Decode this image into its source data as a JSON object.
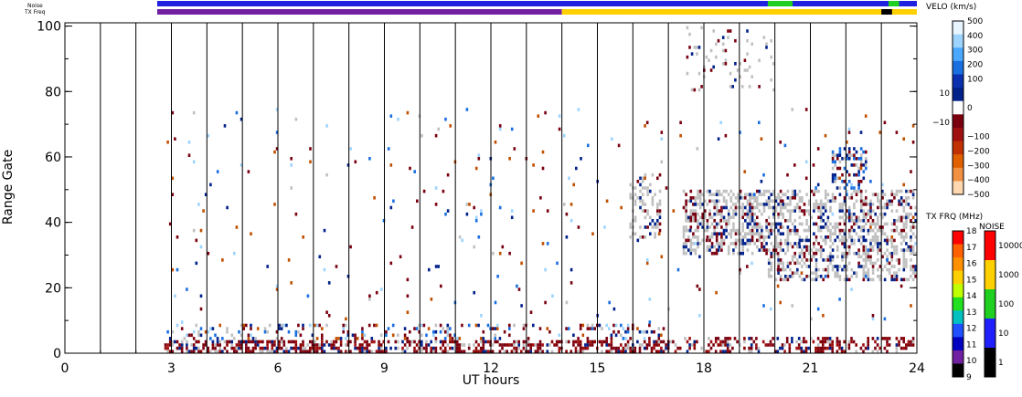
{
  "chart_data": {
    "type": "heatmap",
    "title": "",
    "xlabel": "UT hours",
    "ylabel": "Range Gate",
    "xlim": [
      0,
      24
    ],
    "ylim": [
      0,
      101
    ],
    "x_ticks": [
      "0",
      "3",
      "6",
      "9",
      "12",
      "15",
      "18",
      "21",
      "24"
    ],
    "x_tick_values": [
      0,
      3,
      6,
      9,
      12,
      15,
      18,
      21,
      24
    ],
    "y_ticks": [
      "0",
      "20",
      "40",
      "60",
      "80",
      "100"
    ],
    "y_tick_values": [
      0,
      20,
      40,
      60,
      80,
      100
    ],
    "vertical_lines_hours": [
      1,
      2,
      3,
      4,
      5,
      6,
      7,
      8,
      9,
      10,
      11,
      12,
      13,
      14,
      15,
      16,
      17,
      18,
      19,
      20,
      21,
      22,
      23
    ],
    "top_bars": {
      "noise_label": "Noise",
      "txfreq_label": "TX Freq",
      "noise_segments": [
        {
          "from": 2.6,
          "to": 24,
          "color": "#2020e0"
        },
        {
          "from": 19.8,
          "to": 20.5,
          "color": "#20d020"
        },
        {
          "from": 23.2,
          "to": 23.5,
          "color": "#20d020"
        }
      ],
      "txfreq_segments": [
        {
          "from": 2.6,
          "to": 14.0,
          "color": "#7020a0"
        },
        {
          "from": 14.0,
          "to": 24,
          "color": "#ffd000"
        },
        {
          "from": 23.0,
          "to": 23.3,
          "color": "#000000"
        }
      ]
    },
    "series": [
      {
        "name": "velocity scatter",
        "description_source": "visible colored pixels"
      },
      {
        "name": "ground scatter",
        "color": "#c0c0c0"
      }
    ],
    "clusters": [
      {
        "x0": 2.8,
        "x1": 16.9,
        "y0": 0,
        "y1": 4,
        "density": 0.55,
        "dominant": "darkred"
      },
      {
        "x0": 2.8,
        "x1": 16.9,
        "y0": 4,
        "y1": 9,
        "density": 0.2,
        "dominant": "mixed"
      },
      {
        "x0": 16.9,
        "x1": 24,
        "y0": 0,
        "y1": 5,
        "density": 0.35,
        "dominant": "darkred"
      },
      {
        "x0": 15.9,
        "x1": 16.8,
        "y0": 35,
        "y1": 55,
        "density": 0.3,
        "dominant": "gray"
      },
      {
        "x0": 17.4,
        "x1": 19.8,
        "y0": 30,
        "y1": 50,
        "density": 0.55,
        "dominant": "gray"
      },
      {
        "x0": 19.8,
        "x1": 24,
        "y0": 22,
        "y1": 50,
        "density": 0.45,
        "dominant": "gray"
      },
      {
        "x0": 21.6,
        "x1": 22.6,
        "y0": 50,
        "y1": 63,
        "density": 0.35,
        "dominant": "navy"
      },
      {
        "x0": 17.5,
        "x1": 20.0,
        "y0": 80,
        "y1": 100,
        "density": 0.08,
        "dominant": "gray"
      },
      {
        "x0": 2.8,
        "x1": 24,
        "y0": 9,
        "y1": 75,
        "density": 0.015,
        "dominant": "mixed"
      }
    ],
    "velocity_colorbar": {
      "title": "VELO (km/s)",
      "labels": [
        "500",
        "400",
        "300",
        "200",
        "100",
        "10",
        "0",
        "−10",
        "−100",
        "−200",
        "−300",
        "−400",
        "−500"
      ],
      "colors": [
        "#e8f4ff",
        "#9cd4ff",
        "#4aa8ff",
        "#1a6fe0",
        "#0a30b0",
        "#00208a",
        "#ffffff",
        "#7a0010",
        "#a01010",
        "#c03000",
        "#e06000",
        "#f09040",
        "#ffd8b0"
      ]
    },
    "txfreq_colorbar": {
      "title": "TX FRQ (MHz)",
      "labels": [
        "18",
        "17",
        "16",
        "15",
        "14",
        "13",
        "12",
        "11",
        "10",
        "9"
      ],
      "colors": [
        "#ff0000",
        "#ff6000",
        "#ff9000",
        "#ffd000",
        "#c0ff00",
        "#20e020",
        "#00c0c0",
        "#2050ff",
        "#0000c0",
        "#7020a0",
        "#000000"
      ]
    },
    "noise_colorbar": {
      "title": "NOISE",
      "labels": [
        "10000",
        "1000",
        "100",
        "10",
        "1"
      ],
      "colors": [
        "#ff0000",
        "#ffd000",
        "#20d020",
        "#2020ff",
        "#000000"
      ]
    }
  }
}
